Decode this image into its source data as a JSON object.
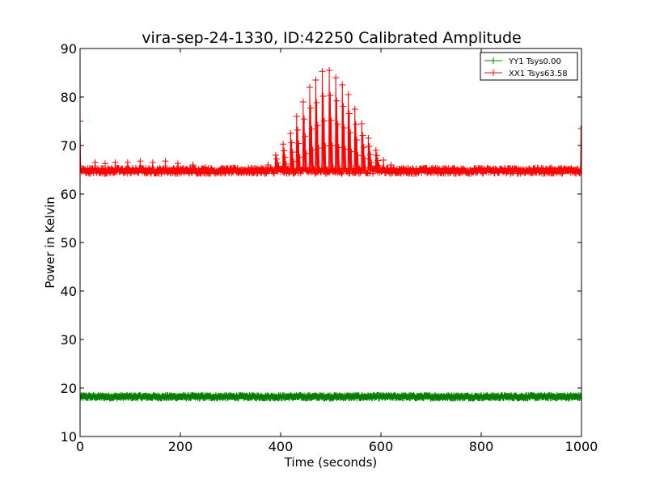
{
  "chart_data": {
    "type": "line",
    "title": "vira-sep-24-1330, ID:42250 Calibrated Amplitude",
    "xlabel": "Time (seconds)",
    "ylabel": "Power in Kelvin",
    "xlim": [
      0,
      1000
    ],
    "ylim": [
      10,
      90
    ],
    "xticks": [
      0,
      200,
      400,
      600,
      800,
      1000
    ],
    "yticks": [
      10,
      20,
      30,
      40,
      50,
      60,
      70,
      80,
      90
    ],
    "grid": false,
    "legend_position": "top-right",
    "series": [
      {
        "name": "YY1 Tsys0.00",
        "color": "#008000",
        "marker": "+",
        "baseline": 18.2,
        "spread": 0.6,
        "x_range": [
          0,
          1000
        ],
        "note_points": []
      },
      {
        "name": "XX1 Tsys63.58",
        "color": "#ff0000",
        "marker": "+",
        "baseline": 64.8,
        "spread": 1.2,
        "x_range": [
          0,
          1000
        ],
        "start_value": 75,
        "end_value": 73.5,
        "peaks": [
          {
            "x": 30,
            "y": 66.5
          },
          {
            "x": 50,
            "y": 66.3
          },
          {
            "x": 70,
            "y": 66.5
          },
          {
            "x": 95,
            "y": 66.5
          },
          {
            "x": 120,
            "y": 66.8
          },
          {
            "x": 145,
            "y": 66.5
          },
          {
            "x": 170,
            "y": 66.8
          },
          {
            "x": 195,
            "y": 66.3
          },
          {
            "x": 225,
            "y": 66.0
          },
          {
            "x": 250,
            "y": 65.5
          },
          {
            "x": 355,
            "y": 65.0
          },
          {
            "x": 375,
            "y": 66.0
          },
          {
            "x": 390,
            "y": 68.0
          },
          {
            "x": 405,
            "y": 70.3
          },
          {
            "x": 420,
            "y": 72.5
          },
          {
            "x": 432,
            "y": 76.0
          },
          {
            "x": 445,
            "y": 79.0
          },
          {
            "x": 458,
            "y": 82.0
          },
          {
            "x": 470,
            "y": 83.5
          },
          {
            "x": 483,
            "y": 85.3
          },
          {
            "x": 497,
            "y": 85.5
          },
          {
            "x": 510,
            "y": 84.0
          },
          {
            "x": 523,
            "y": 82.5
          },
          {
            "x": 535,
            "y": 80.5
          },
          {
            "x": 548,
            "y": 77.5
          },
          {
            "x": 562,
            "y": 74.5
          },
          {
            "x": 575,
            "y": 71.5
          },
          {
            "x": 590,
            "y": 69.0
          },
          {
            "x": 605,
            "y": 67.0
          },
          {
            "x": 620,
            "y": 66.0
          }
        ]
      }
    ]
  }
}
